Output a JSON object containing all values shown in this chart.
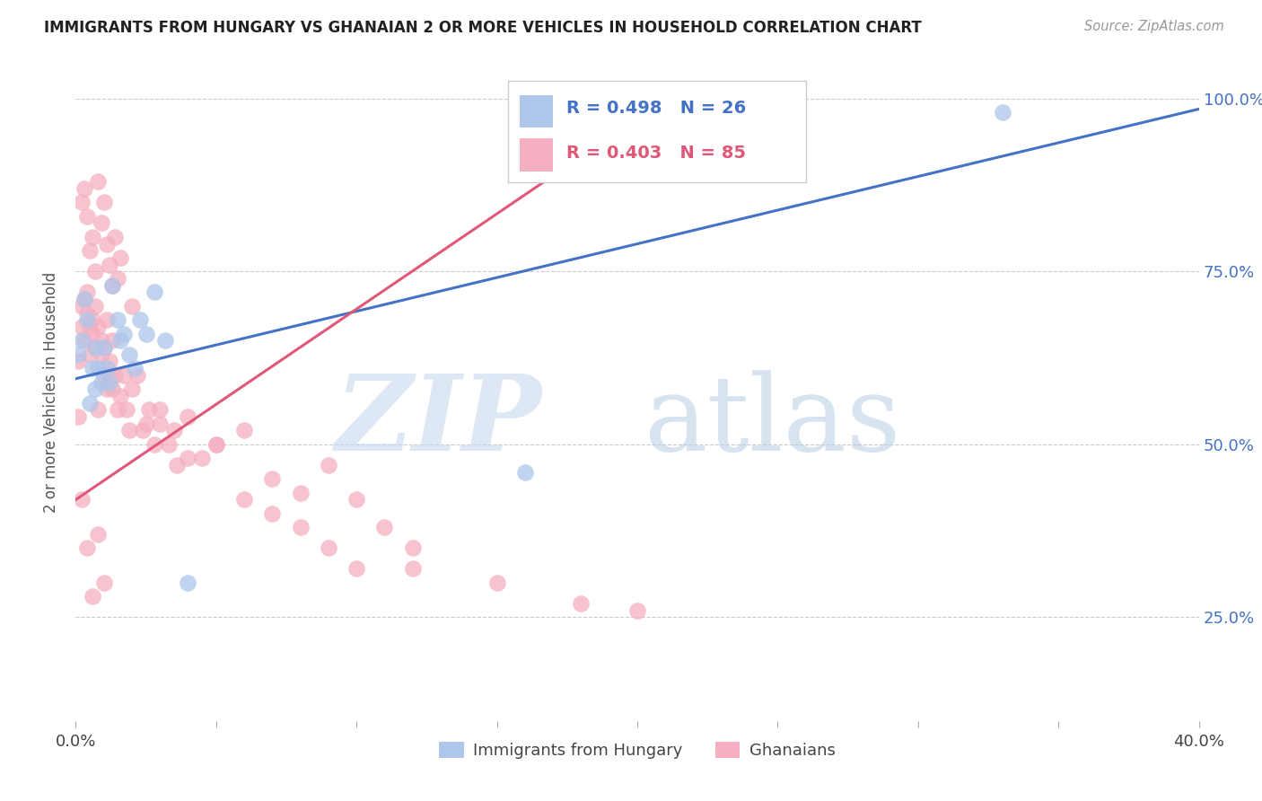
{
  "title": "IMMIGRANTS FROM HUNGARY VS GHANAIAN 2 OR MORE VEHICLES IN HOUSEHOLD CORRELATION CHART",
  "source": "Source: ZipAtlas.com",
  "ylabel": "2 or more Vehicles in Household",
  "xlim": [
    0.0,
    0.4
  ],
  "ylim": [
    0.1,
    1.05
  ],
  "yticks": [
    0.25,
    0.5,
    0.75,
    1.0
  ],
  "ytick_labels": [
    "25.0%",
    "50.0%",
    "75.0%",
    "100.0%"
  ],
  "xticks": [
    0.0,
    0.05,
    0.1,
    0.15,
    0.2,
    0.25,
    0.3,
    0.35,
    0.4
  ],
  "xtick_labels": [
    "0.0%",
    "",
    "",
    "",
    "",
    "",
    "",
    "",
    "40.0%"
  ],
  "blue_color": "#adc6ea",
  "pink_color": "#f5afc0",
  "blue_line_color": "#4472c4",
  "pink_line_color": "#e05878",
  "background_color": "#ffffff",
  "grid_color": "#cccccc",
  "blue_R": 0.498,
  "blue_N": 26,
  "pink_R": 0.403,
  "pink_N": 85,
  "blue_x": [
    0.001,
    0.002,
    0.003,
    0.004,
    0.005,
    0.006,
    0.007,
    0.007,
    0.008,
    0.009,
    0.01,
    0.011,
    0.012,
    0.013,
    0.015,
    0.016,
    0.017,
    0.019,
    0.021,
    0.023,
    0.025,
    0.028,
    0.032,
    0.16,
    0.04,
    0.33
  ],
  "blue_y": [
    0.63,
    0.65,
    0.71,
    0.68,
    0.56,
    0.61,
    0.58,
    0.64,
    0.61,
    0.59,
    0.64,
    0.61,
    0.59,
    0.73,
    0.68,
    0.65,
    0.66,
    0.63,
    0.61,
    0.68,
    0.66,
    0.72,
    0.65,
    0.46,
    0.3,
    0.98
  ],
  "pink_x": [
    0.001,
    0.001,
    0.002,
    0.002,
    0.003,
    0.003,
    0.004,
    0.004,
    0.005,
    0.005,
    0.006,
    0.006,
    0.007,
    0.007,
    0.008,
    0.008,
    0.009,
    0.009,
    0.01,
    0.01,
    0.011,
    0.011,
    0.012,
    0.012,
    0.013,
    0.013,
    0.014,
    0.015,
    0.016,
    0.017,
    0.018,
    0.019,
    0.02,
    0.022,
    0.024,
    0.026,
    0.028,
    0.03,
    0.033,
    0.036,
    0.04,
    0.045,
    0.05,
    0.06,
    0.07,
    0.08,
    0.09,
    0.1,
    0.11,
    0.12,
    0.002,
    0.003,
    0.004,
    0.005,
    0.006,
    0.007,
    0.008,
    0.009,
    0.01,
    0.011,
    0.012,
    0.013,
    0.014,
    0.015,
    0.016,
    0.02,
    0.025,
    0.03,
    0.035,
    0.04,
    0.05,
    0.06,
    0.07,
    0.08,
    0.09,
    0.1,
    0.12,
    0.15,
    0.18,
    0.2,
    0.002,
    0.004,
    0.006,
    0.008,
    0.01
  ],
  "pink_y": [
    0.62,
    0.54,
    0.67,
    0.7,
    0.65,
    0.71,
    0.69,
    0.72,
    0.67,
    0.63,
    0.66,
    0.68,
    0.64,
    0.7,
    0.67,
    0.55,
    0.63,
    0.65,
    0.6,
    0.64,
    0.58,
    0.68,
    0.6,
    0.62,
    0.65,
    0.58,
    0.6,
    0.55,
    0.57,
    0.6,
    0.55,
    0.52,
    0.58,
    0.6,
    0.52,
    0.55,
    0.5,
    0.53,
    0.5,
    0.47,
    0.48,
    0.48,
    0.5,
    0.52,
    0.45,
    0.43,
    0.47,
    0.42,
    0.38,
    0.35,
    0.85,
    0.87,
    0.83,
    0.78,
    0.8,
    0.75,
    0.88,
    0.82,
    0.85,
    0.79,
    0.76,
    0.73,
    0.8,
    0.74,
    0.77,
    0.7,
    0.53,
    0.55,
    0.52,
    0.54,
    0.5,
    0.42,
    0.4,
    0.38,
    0.35,
    0.32,
    0.32,
    0.3,
    0.27,
    0.26,
    0.42,
    0.35,
    0.28,
    0.37,
    0.3
  ],
  "blue_line_x0": 0.0,
  "blue_line_x1": 0.4,
  "blue_line_y0": 0.595,
  "blue_line_y1": 0.985,
  "pink_line_x0": 0.0,
  "pink_line_x1": 0.185,
  "pink_line_y0": 0.42,
  "pink_line_y1": 0.93
}
